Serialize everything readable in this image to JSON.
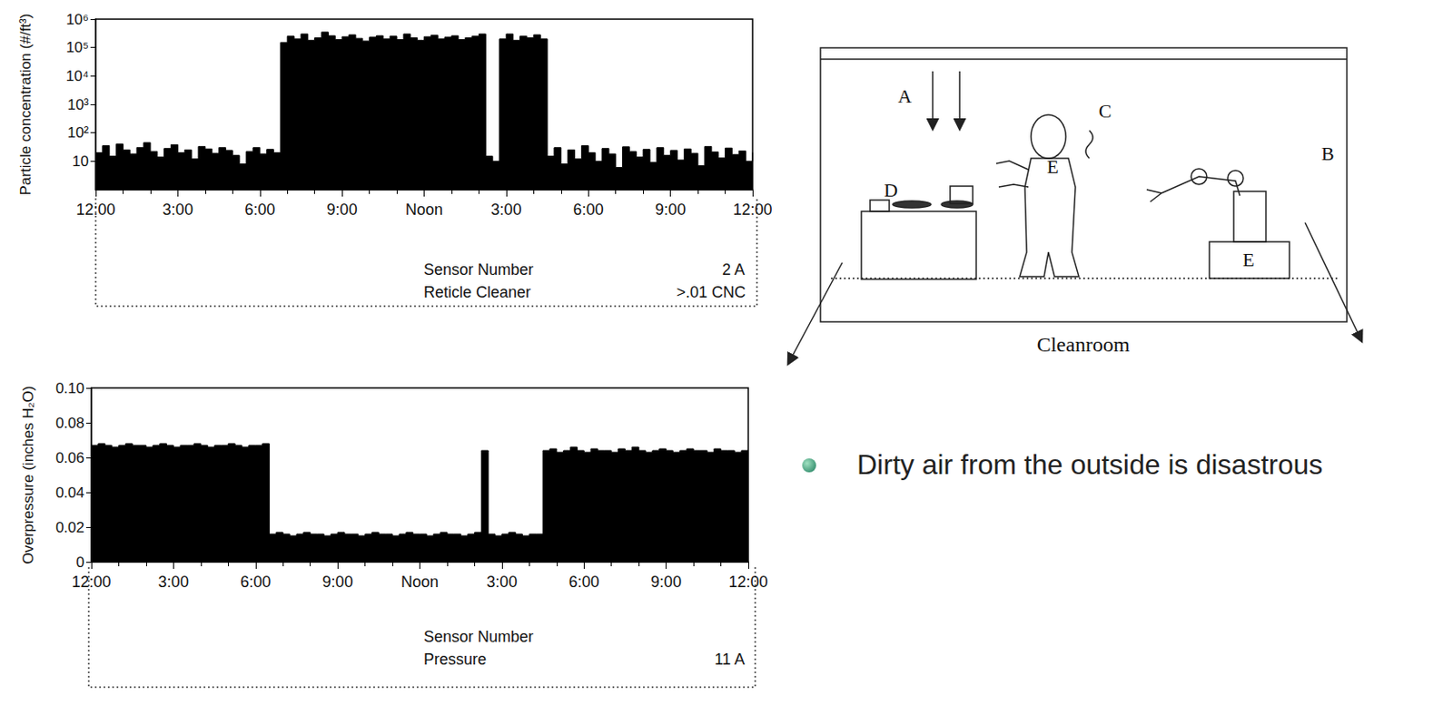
{
  "chart_data": [
    {
      "type": "area",
      "log": "y",
      "grid": false,
      "color": "#000000",
      "y_label": "Particle concentration (#/ft³)",
      "xlim": [
        0,
        24
      ],
      "xticks": [
        {
          "value": 0,
          "label": "12:00"
        },
        {
          "value": 3,
          "label": "3:00"
        },
        {
          "value": 6,
          "label": "6:00"
        },
        {
          "value": 9,
          "label": "9:00"
        },
        {
          "value": 12,
          "label": "Noon"
        },
        {
          "value": 15,
          "label": "3:00"
        },
        {
          "value": 18,
          "label": "6:00"
        },
        {
          "value": 21,
          "label": "9:00"
        },
        {
          "value": 24,
          "label": "12:00"
        }
      ],
      "ylim": [
        1,
        1000000
      ],
      "yticks": [
        10,
        {
          "value": 100,
          "label": "10²"
        },
        {
          "value": 1000,
          "label": "10³"
        },
        {
          "value": 10000,
          "label": "10⁴"
        },
        {
          "value": 100000,
          "label": "10⁵"
        },
        {
          "value": 1000000,
          "label": "10⁶"
        }
      ],
      "annotations": [
        "Sensor Number",
        "2 A",
        "Reticle Cleaner",
        ">.01 CNC"
      ],
      "x": [
        0,
        0.25,
        0.5,
        0.75,
        1,
        1.25,
        1.5,
        1.75,
        2,
        2.25,
        2.5,
        2.75,
        3,
        3.25,
        3.5,
        3.75,
        4,
        4.25,
        4.5,
        4.75,
        5,
        5.25,
        5.5,
        5.75,
        6,
        6.25,
        6.5,
        6.75,
        7,
        7.25,
        7.5,
        7.75,
        8,
        8.25,
        8.5,
        8.75,
        9,
        9.25,
        9.5,
        9.75,
        10,
        10.25,
        10.5,
        10.75,
        11,
        11.25,
        11.5,
        11.75,
        12,
        12.25,
        12.5,
        12.75,
        13,
        13.25,
        13.5,
        13.75,
        14,
        14.25,
        14.5,
        14.75,
        15,
        15.25,
        15.5,
        15.75,
        16,
        16.25,
        16.5,
        16.75,
        17,
        17.25,
        17.5,
        17.75,
        18,
        18.25,
        18.5,
        18.75,
        19,
        19.25,
        19.5,
        19.75,
        20,
        20.25,
        20.5,
        20.75,
        21,
        21.25,
        21.5,
        21.75,
        22,
        22.25,
        22.5,
        22.75,
        23,
        23.25,
        23.5,
        23.75,
        24
      ],
      "values": [
        20,
        35,
        15,
        40,
        25,
        18,
        30,
        45,
        22,
        14,
        28,
        38,
        20,
        25,
        12,
        33,
        27,
        19,
        30,
        24,
        16,
        8,
        22,
        30,
        18,
        26,
        20,
        150000,
        250000,
        200000,
        300000,
        180000,
        220000,
        350000,
        260000,
        190000,
        240000,
        280000,
        210000,
        170000,
        230000,
        260000,
        200000,
        250000,
        190000,
        300000,
        220000,
        180000,
        240000,
        270000,
        200000,
        230000,
        260000,
        190000,
        220000,
        250000,
        300000,
        15,
        10,
        200000,
        300000,
        180000,
        250000,
        220000,
        280000,
        200000,
        15,
        30,
        8,
        25,
        12,
        35,
        20,
        10,
        28,
        18,
        6,
        32,
        22,
        14,
        26,
        9,
        30,
        16,
        24,
        11,
        27,
        19,
        7,
        33,
        21,
        13,
        29,
        17,
        23,
        10,
        20
      ]
    },
    {
      "type": "area",
      "grid": false,
      "color": "#000000",
      "y_label": "Overpressure (inches H₂O)",
      "xlim": [
        0,
        24
      ],
      "xticks": [
        {
          "value": 0,
          "label": "12:00"
        },
        {
          "value": 3,
          "label": "3:00"
        },
        {
          "value": 6,
          "label": "6:00"
        },
        {
          "value": 9,
          "label": "9:00"
        },
        {
          "value": 12,
          "label": "Noon"
        },
        {
          "value": 15,
          "label": "3:00"
        },
        {
          "value": 18,
          "label": "6:00"
        },
        {
          "value": 21,
          "label": "9:00"
        },
        {
          "value": 24,
          "label": "12:00"
        }
      ],
      "ylim": [
        0,
        0.1
      ],
      "yticks": [
        0,
        0.02,
        0.04,
        0.06,
        0.08,
        {
          "value": 0.1,
          "label": "0.10"
        }
      ],
      "annotations": [
        "Sensor Number",
        "Pressure",
        "11 A"
      ],
      "x": [
        0,
        0.25,
        0.5,
        0.75,
        1,
        1.25,
        1.5,
        1.75,
        2,
        2.25,
        2.5,
        2.75,
        3,
        3.25,
        3.5,
        3.75,
        4,
        4.25,
        4.5,
        4.75,
        5,
        5.25,
        5.5,
        5.75,
        6,
        6.25,
        6.5,
        6.75,
        7,
        7.25,
        7.5,
        7.75,
        8,
        8.25,
        8.5,
        8.75,
        9,
        9.25,
        9.5,
        9.75,
        10,
        10.25,
        10.5,
        10.75,
        11,
        11.25,
        11.5,
        11.75,
        12,
        12.25,
        12.5,
        12.75,
        13,
        13.25,
        13.5,
        13.75,
        14,
        14.25,
        14.5,
        14.75,
        15,
        15.25,
        15.5,
        15.75,
        16,
        16.25,
        16.5,
        16.75,
        17,
        17.25,
        17.5,
        17.75,
        18,
        18.25,
        18.5,
        18.75,
        19,
        19.25,
        19.5,
        19.75,
        20,
        20.25,
        20.5,
        20.75,
        21,
        21.25,
        21.5,
        21.75,
        22,
        22.25,
        22.5,
        22.75,
        23,
        23.25,
        23.5,
        23.75,
        24
      ],
      "values": [
        0.067,
        0.068,
        0.067,
        0.066,
        0.067,
        0.068,
        0.067,
        0.067,
        0.066,
        0.067,
        0.068,
        0.067,
        0.066,
        0.067,
        0.067,
        0.068,
        0.067,
        0.066,
        0.067,
        0.067,
        0.068,
        0.067,
        0.066,
        0.067,
        0.067,
        0.068,
        0.016,
        0.017,
        0.016,
        0.015,
        0.016,
        0.017,
        0.016,
        0.016,
        0.015,
        0.016,
        0.017,
        0.016,
        0.016,
        0.015,
        0.016,
        0.017,
        0.016,
        0.016,
        0.015,
        0.016,
        0.017,
        0.016,
        0.016,
        0.015,
        0.016,
        0.017,
        0.016,
        0.016,
        0.015,
        0.016,
        0.017,
        0.064,
        0.016,
        0.015,
        0.016,
        0.017,
        0.016,
        0.015,
        0.016,
        0.016,
        0.064,
        0.065,
        0.063,
        0.064,
        0.066,
        0.064,
        0.063,
        0.065,
        0.064,
        0.064,
        0.063,
        0.065,
        0.064,
        0.066,
        0.064,
        0.063,
        0.064,
        0.065,
        0.064,
        0.063,
        0.064,
        0.065,
        0.064,
        0.064,
        0.063,
        0.065,
        0.064,
        0.064,
        0.063,
        0.064,
        0.064
      ]
    }
  ],
  "diagram": {
    "caption": "Cleanroom",
    "labels": [
      "A",
      "B",
      "C",
      "D",
      "E",
      "E"
    ]
  },
  "bullets": [
    "Dirty air from the outside is disastrous"
  ]
}
